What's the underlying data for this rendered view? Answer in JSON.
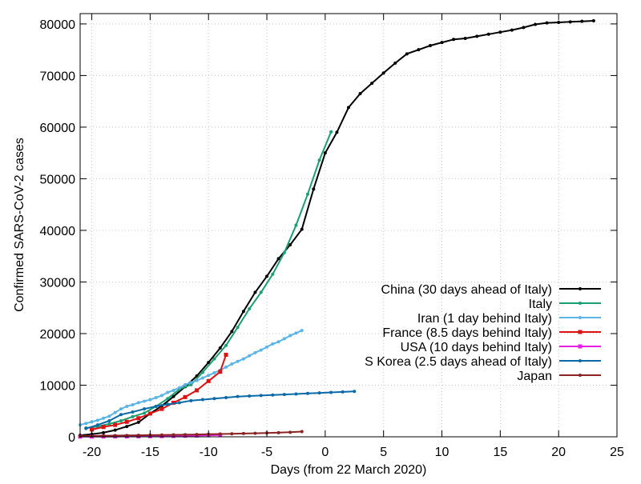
{
  "chart_data": {
    "type": "line",
    "title": "",
    "xlabel": "Days (from 22 March 2020)",
    "ylabel": "Confirmed SARS-CoV-2 cases",
    "xlim": [
      -21,
      25
    ],
    "ylim": [
      0,
      82000
    ],
    "xticks": [
      -20,
      -15,
      -10,
      -5,
      0,
      5,
      10,
      15,
      20,
      25
    ],
    "yticks": [
      0,
      10000,
      20000,
      30000,
      40000,
      50000,
      60000,
      70000,
      80000
    ],
    "grid": true,
    "legend_position": "bottom-right",
    "series": [
      {
        "name": "China (30 days ahead of Italy)",
        "color": "#000000",
        "marker": "dot",
        "x": [
          -21,
          -20,
          -19,
          -18,
          -17,
          -16,
          -15,
          -14,
          -13,
          -12,
          -11,
          -10,
          -9,
          -8,
          -7,
          -6,
          -5,
          -4,
          -3,
          -2,
          -1,
          0,
          1,
          2,
          3,
          4,
          5,
          6,
          7,
          8,
          9,
          10,
          11,
          12,
          13,
          14,
          15,
          16,
          17,
          18,
          19,
          20,
          21,
          22,
          23
        ],
        "y": [
          300,
          500,
          800,
          1300,
          2000,
          2800,
          4500,
          6000,
          7800,
          9700,
          11800,
          14400,
          17200,
          20400,
          24300,
          28000,
          31100,
          34500,
          37200,
          40200,
          48000,
          55000,
          59000,
          63800,
          66500,
          68500,
          70500,
          72400,
          74200,
          75000,
          75800,
          76400,
          77000,
          77200,
          77600,
          78000,
          78400,
          78800,
          79300,
          79900,
          80200,
          80300,
          80400,
          80500,
          80600
        ]
      },
      {
        "name": "Italy",
        "color": "#1a9e73",
        "marker": "dot",
        "x": [
          -20.5,
          -19.5,
          -18.5,
          -17.5,
          -16.5,
          -15.5,
          -14.5,
          -13.5,
          -12.5,
          -11.5,
          -10.5,
          -9.5,
          -8.5,
          -7.5,
          -6.5,
          -5.5,
          -4.5,
          -3.5,
          -2.5,
          -1.5,
          -0.5,
          0.5
        ],
        "y": [
          1700,
          2000,
          2500,
          3100,
          3900,
          4600,
          5900,
          7400,
          9200,
          10100,
          12500,
          15100,
          17700,
          21200,
          24800,
          28000,
          31500,
          35700,
          41000,
          47000,
          53600,
          59100
        ]
      },
      {
        "name": "Iran (1 day behind Italy)",
        "color": "#5ab4e8",
        "marker": "dot",
        "x": [
          -21,
          -20.5,
          -20,
          -19.5,
          -19,
          -18.5,
          -18,
          -17.5,
          -17,
          -16.5,
          -16,
          -15.5,
          -15,
          -14.5,
          -14,
          -13.5,
          -13,
          -12.5,
          -12,
          -11.5,
          -11,
          -10.5,
          -10,
          -9.5,
          -9,
          -8.5,
          -8,
          -7.5,
          -7,
          -6.5,
          -6,
          -5.5,
          -5,
          -4.5,
          -4,
          -3.5,
          -3,
          -2.5,
          -2
        ],
        "y": [
          2300,
          2600,
          2900,
          3200,
          3600,
          4000,
          4700,
          5400,
          5900,
          6200,
          6600,
          6900,
          7200,
          7600,
          8000,
          8600,
          9000,
          9500,
          10100,
          10500,
          10900,
          11400,
          11900,
          12400,
          12900,
          13500,
          14100,
          14600,
          15100,
          15700,
          16300,
          16800,
          17400,
          18000,
          18400,
          19000,
          19600,
          20100,
          20600
        ]
      },
      {
        "name": "France (8.5 days behind Italy)",
        "color": "#dd1111",
        "marker": "square",
        "x": [
          -20,
          -19,
          -18,
          -17,
          -16,
          -15,
          -14,
          -13,
          -12,
          -11,
          -10,
          -9,
          -8.5
        ],
        "y": [
          1400,
          1900,
          2300,
          2900,
          3600,
          4500,
          5400,
          6600,
          7700,
          9000,
          10800,
          12600,
          15900
        ]
      },
      {
        "name": "USA (10 days behind Italy)",
        "color": "#e61ee6",
        "marker": "square",
        "x": [
          -21,
          -20,
          -19,
          -18,
          -17,
          -16,
          -15,
          -14,
          -13,
          -12,
          -11,
          -10,
          -9
        ],
        "y": [
          30,
          40,
          50,
          60,
          70,
          90,
          110,
          130,
          160,
          200,
          240,
          290,
          350
        ]
      },
      {
        "name": "S Korea (2.5 days ahead of Italy)",
        "color": "#0a6aa8",
        "marker": "dot",
        "x": [
          -20.5,
          -19.5,
          -18.5,
          -17.5,
          -16.5,
          -15.5,
          -14.5,
          -13.5,
          -12.5,
          -11.5,
          -10.5,
          -9.5,
          -8.5,
          -7.5,
          -6.5,
          -5.5,
          -4.5,
          -3.5,
          -2.5,
          -1.5,
          -0.5,
          0.5,
          1.5,
          2.5
        ],
        "y": [
          1600,
          2300,
          3100,
          4300,
          4800,
          5400,
          5900,
          6300,
          6600,
          7000,
          7200,
          7400,
          7600,
          7800,
          7900,
          8000,
          8100,
          8200,
          8300,
          8400,
          8500,
          8600,
          8700,
          8800
        ]
      },
      {
        "name": "Japan",
        "color": "#8b2323",
        "marker": "dot",
        "x": [
          -21,
          -20,
          -19,
          -18,
          -17,
          -16,
          -15,
          -14,
          -13,
          -12,
          -11,
          -10,
          -9,
          -8,
          -7,
          -6,
          -5,
          -4,
          -3,
          -2
        ],
        "y": [
          150,
          170,
          200,
          230,
          260,
          290,
          320,
          350,
          380,
          410,
          450,
          500,
          540,
          590,
          630,
          680,
          740,
          800,
          880,
          1000
        ]
      }
    ]
  }
}
